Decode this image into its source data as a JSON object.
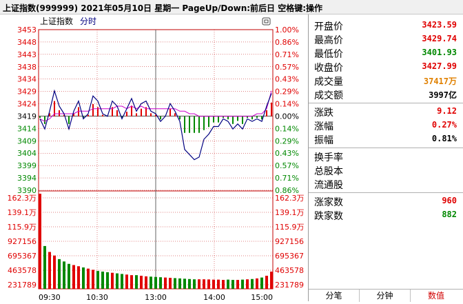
{
  "header": {
    "title": "上证指数(999999)  2021年05月10日 星期一  PageUp/Down:前后日 空格键:操作"
  },
  "chart_header": {
    "name": "上证指数",
    "mode": "分时",
    "window_icon": "window-icon"
  },
  "colors": {
    "up": "#e00000",
    "down": "#008800",
    "price": "#000080",
    "avg": "#cc00cc",
    "grid": "#c00000"
  },
  "price_axis": {
    "left": [
      "3453",
      "3448",
      "3443",
      "3438",
      "3434",
      "3429",
      "3424",
      "3419",
      "3414",
      "3409",
      "3404",
      "3399",
      "3394",
      "3390"
    ],
    "right": [
      "1.00%",
      "0.86%",
      "0.71%",
      "0.57%",
      "0.43%",
      "0.29%",
      "0.14%",
      "0.00%",
      "0.14%",
      "0.29%",
      "0.43%",
      "0.57%",
      "0.71%",
      "0.86%"
    ]
  },
  "volume_axis": {
    "left": [
      "162.3万",
      "139.1万",
      "115.9万",
      "927156",
      "695367",
      "463578",
      "231789"
    ],
    "right": [
      "162.3万",
      "139.1万",
      "115.9万",
      "927156",
      "695367",
      "463578",
      "231789"
    ]
  },
  "time_axis": [
    "09:30",
    "10:30",
    "13:00",
    "14:00",
    "15:00"
  ],
  "chart_data": {
    "type": "line",
    "xlabel": "",
    "ylabel": "",
    "prev_close": 3419,
    "ylim": [
      3390,
      3453
    ],
    "x": [
      "09:30",
      "09:35",
      "09:40",
      "09:45",
      "09:50",
      "09:55",
      "10:00",
      "10:05",
      "10:10",
      "10:15",
      "10:20",
      "10:25",
      "10:30",
      "10:35",
      "10:40",
      "10:45",
      "10:50",
      "10:55",
      "11:00",
      "11:05",
      "11:10",
      "11:15",
      "11:20",
      "11:25",
      "11:30",
      "13:05",
      "13:10",
      "13:15",
      "13:20",
      "13:25",
      "13:30",
      "13:35",
      "13:40",
      "13:45",
      "13:50",
      "13:55",
      "14:00",
      "14:05",
      "14:10",
      "14:15",
      "14:20",
      "14:25",
      "14:30",
      "14:35",
      "14:40",
      "14:45",
      "14:50",
      "14:55",
      "15:00"
    ],
    "series": [
      {
        "values": [
          3418,
          3414,
          3421,
          3429,
          3423,
          3420,
          3414,
          3421,
          3425,
          3418,
          3420,
          3427,
          3425,
          3420,
          3419,
          3425,
          3423,
          3418,
          3422,
          3426,
          3421,
          3424,
          3425,
          3421,
          3420,
          3417,
          3419,
          3424,
          3421,
          3417,
          3406,
          3404,
          3402,
          3403,
          3410,
          3412,
          3415,
          3415,
          3418,
          3417,
          3414,
          3416,
          3414,
          3418,
          3417,
          3418,
          3417,
          3423,
          3427.99
        ]
      },
      {
        "values": [
          3418,
          3417,
          3418,
          3420,
          3420,
          3420,
          3420,
          3420,
          3421,
          3421,
          3421,
          3422,
          3422,
          3422,
          3422,
          3422,
          3423,
          3423,
          3422,
          3423,
          3422,
          3423,
          3422,
          3422,
          3422,
          3422,
          3422,
          3422,
          3422,
          3421,
          3421,
          3420,
          3420,
          3419,
          3419,
          3419,
          3419,
          3419,
          3419,
          3419,
          3419,
          3419,
          3419,
          3419,
          3419,
          3420,
          3420,
          3422,
          3429
        ]
      }
    ],
    "volume": {
      "ylim": [
        0,
        1623000
      ],
      "values": [
        1600000,
        720000,
        620000,
        560000,
        500000,
        460000,
        420000,
        400000,
        380000,
        360000,
        340000,
        320000,
        300000,
        290000,
        280000,
        270000,
        260000,
        250000,
        240000,
        230000,
        230000,
        220000,
        210000,
        205000,
        200000,
        195000,
        190000,
        185000,
        180000,
        175000,
        170000,
        165000,
        160000,
        160000,
        160000,
        158000,
        155000,
        155000,
        150000,
        155000,
        150000,
        150000,
        155000,
        160000,
        165000,
        175000,
        190000,
        220000,
        290000
      ]
    }
  },
  "quote": {
    "open_label": "开盘价",
    "open": "3423.59",
    "high_label": "最高价",
    "high": "3429.74",
    "low_label": "最低价",
    "low": "3401.93",
    "close_label": "收盘价",
    "close": "3427.99",
    "volume_label": "成交量",
    "volume": "37417万",
    "amount_label": "成交额",
    "amount": "3997亿",
    "change_label": "涨跌",
    "change": "9.12",
    "pct_label": "涨幅",
    "pct": "0.27%",
    "amplitude_label": "振幅",
    "amplitude": "0.81%",
    "turnover_label": "换手率",
    "total_shares_label": "总股本",
    "float_shares_label": "流通股",
    "up_count_label": "涨家数",
    "up_count": "960",
    "down_count_label": "跌家数",
    "down_count": "882"
  },
  "tabs": [
    "分笔",
    "分钟",
    "数值"
  ]
}
